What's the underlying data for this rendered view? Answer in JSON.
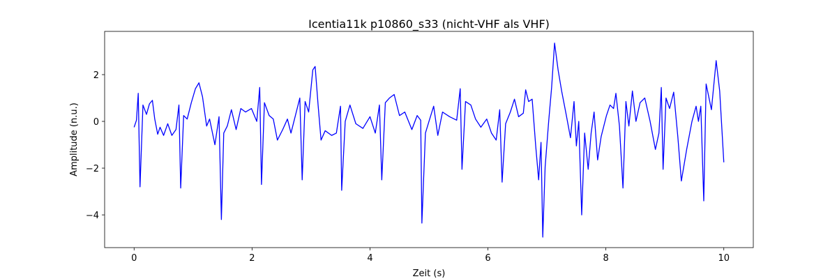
{
  "chart_data": {
    "type": "line",
    "title": "Icentia11k p10860_s33 (nicht-VHF als VHF)",
    "x_label": "Zeit (s)",
    "y_label": "Amplitude (n.u.)",
    "color": "#0000ff",
    "grid": false,
    "xlim": [
      -0.5,
      10.5
    ],
    "ylim": [
      -5.4,
      3.85
    ],
    "xticks": [
      0,
      2,
      4,
      6,
      8,
      10
    ],
    "yticks": [
      {
        "value": -4,
        "label": "−4"
      },
      {
        "value": -2,
        "label": "−2"
      },
      0,
      2
    ],
    "x": [
      0,
      0.04,
      0.07,
      0.1,
      0.15,
      0.21,
      0.26,
      0.31,
      0.35,
      0.4,
      0.44,
      0.5,
      0.57,
      0.64,
      0.71,
      0.76,
      0.79,
      0.84,
      0.9,
      0.97,
      1.04,
      1.1,
      1.16,
      1.23,
      1.28,
      1.37,
      1.44,
      1.48,
      1.52,
      1.58,
      1.65,
      1.73,
      1.81,
      1.89,
      1.99,
      2.08,
      2.13,
      2.16,
      2.21,
      2.29,
      2.36,
      2.43,
      2.52,
      2.6,
      2.66,
      2.72,
      2.81,
      2.85,
      2.9,
      2.96,
      3.03,
      3.07,
      3.12,
      3.17,
      3.24,
      3.35,
      3.43,
      3.5,
      3.52,
      3.58,
      3.66,
      3.76,
      3.88,
      4.0,
      4.09,
      4.16,
      4.2,
      4.26,
      4.33,
      4.41,
      4.5,
      4.59,
      4.71,
      4.8,
      4.86,
      4.88,
      4.94,
      5.0,
      5.08,
      5.15,
      5.23,
      5.35,
      5.47,
      5.53,
      5.56,
      5.62,
      5.71,
      5.79,
      5.88,
      5.98,
      6.06,
      6.14,
      6.2,
      6.24,
      6.3,
      6.38,
      6.45,
      6.52,
      6.6,
      6.64,
      6.69,
      6.75,
      6.81,
      6.86,
      6.9,
      6.93,
      6.97,
      7.03,
      7.08,
      7.13,
      7.19,
      7.25,
      7.33,
      7.4,
      7.46,
      7.5,
      7.54,
      7.59,
      7.64,
      7.7,
      7.75,
      7.8,
      7.86,
      7.92,
      8.01,
      8.07,
      8.13,
      8.17,
      8.23,
      8.29,
      8.34,
      8.39,
      8.45,
      8.51,
      8.58,
      8.66,
      8.75,
      8.84,
      8.9,
      8.94,
      8.97,
      9.02,
      9.08,
      9.15,
      9.22,
      9.28,
      9.37,
      9.46,
      9.53,
      9.57,
      9.61,
      9.66,
      9.7,
      9.79,
      9.87,
      9.93,
      10.0
    ],
    "values": [
      -0.25,
      0.05,
      1.2,
      -2.8,
      0.7,
      0.3,
      0.75,
      0.9,
      0.1,
      -0.55,
      -0.25,
      -0.6,
      -0.1,
      -0.6,
      -0.35,
      0.7,
      -2.85,
      0.25,
      0.1,
      0.8,
      1.4,
      1.65,
      1.05,
      -0.2,
      0.1,
      -1.0,
      0.2,
      -4.2,
      -0.5,
      -0.2,
      0.5,
      -0.35,
      0.55,
      0.4,
      0.55,
      0,
      1.45,
      -2.7,
      0.8,
      0.25,
      0.1,
      -0.8,
      -0.35,
      0.1,
      -0.5,
      0.1,
      1.0,
      -2.5,
      0.85,
      0.4,
      2.2,
      2.35,
      0.7,
      -0.8,
      -0.4,
      -0.6,
      -0.5,
      0.65,
      -2.95,
      0,
      0.7,
      -0.1,
      -0.3,
      0.2,
      -0.5,
      0.7,
      -2.5,
      0.8,
      1.0,
      1.15,
      0.25,
      0.4,
      -0.35,
      0.25,
      0.05,
      -4.35,
      -0.5,
      0,
      0.65,
      -0.6,
      0.4,
      0.2,
      0.05,
      1.4,
      -2.05,
      0.85,
      0.7,
      0.1,
      -0.25,
      0.1,
      -0.5,
      -0.8,
      0.5,
      -2.6,
      -0.1,
      0.4,
      0.95,
      0.2,
      0.35,
      1.35,
      0.85,
      0.95,
      -1.05,
      -2.5,
      -0.9,
      -4.95,
      -1.95,
      0,
      1.45,
      3.35,
      2.2,
      1.3,
      0.25,
      -0.7,
      0.85,
      -1.05,
      0,
      -4.0,
      -0.5,
      -2.05,
      -0.5,
      0.4,
      -1.65,
      -0.65,
      0.25,
      0.7,
      0.55,
      1.2,
      -0.2,
      -2.85,
      0.85,
      -0.2,
      1.3,
      0,
      0.8,
      1.0,
      0,
      -1.2,
      -0.5,
      1.45,
      -2.05,
      1.0,
      0.55,
      1.25,
      -0.65,
      -2.55,
      -1.2,
      0,
      0.65,
      0,
      0.65,
      -3.4,
      1.6,
      0.5,
      2.6,
      1.3,
      -1.75
    ]
  }
}
